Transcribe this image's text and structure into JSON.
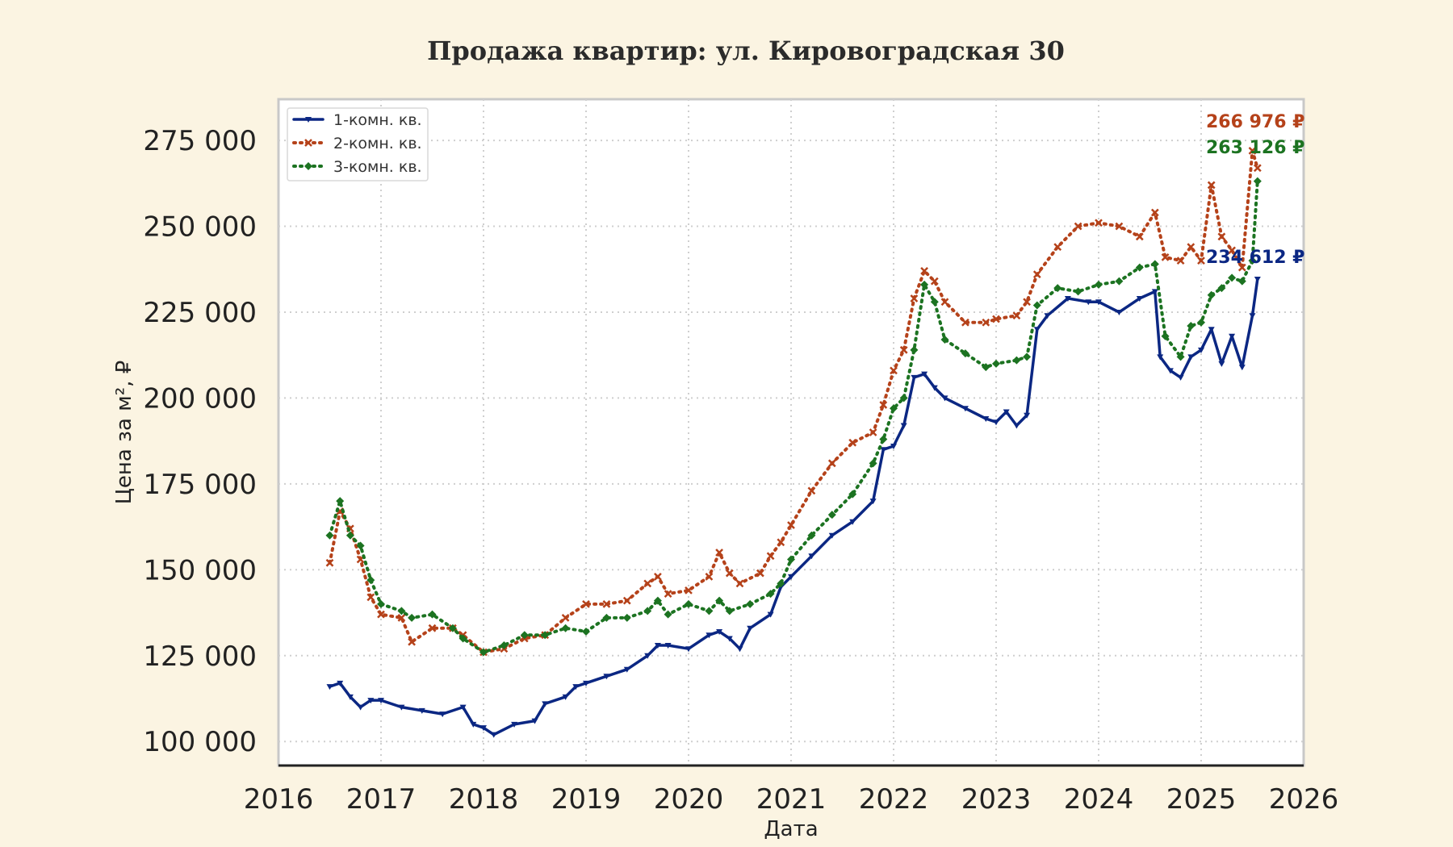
{
  "chart_data": {
    "type": "line",
    "title": "Продажа квартир: ул. Кировоградская 30",
    "xlabel": "Дата",
    "ylabel": "Цена за м², ₽",
    "xlim": [
      2016,
      2026
    ],
    "ylim": [
      93000,
      287000
    ],
    "x_ticks": [
      "2016",
      "2017",
      "2018",
      "2019",
      "2020",
      "2021",
      "2022",
      "2023",
      "2024",
      "2025",
      "2026"
    ],
    "y_ticks": [
      "100 000",
      "125 000",
      "150 000",
      "175 000",
      "200 000",
      "225 000",
      "250 000",
      "275 000"
    ],
    "grid": true,
    "legend_position": "top-left",
    "series": [
      {
        "name": "1-комн. кв.",
        "color": "#0b2783",
        "style": "solid",
        "marker": "triangle-down",
        "end_label": "234 612 ₽",
        "x": [
          2016.5,
          2016.6,
          2016.7,
          2016.8,
          2016.9,
          2017.0,
          2017.2,
          2017.4,
          2017.6,
          2017.8,
          2017.9,
          2018.0,
          2018.1,
          2018.3,
          2018.5,
          2018.6,
          2018.8,
          2018.9,
          2019.0,
          2019.2,
          2019.4,
          2019.6,
          2019.7,
          2019.8,
          2020.0,
          2020.2,
          2020.3,
          2020.4,
          2020.5,
          2020.6,
          2020.8,
          2020.9,
          2021.0,
          2021.2,
          2021.4,
          2021.6,
          2021.8,
          2021.9,
          2022.0,
          2022.1,
          2022.2,
          2022.3,
          2022.4,
          2022.5,
          2022.7,
          2022.9,
          2023.0,
          2023.1,
          2023.2,
          2023.3,
          2023.4,
          2023.5,
          2023.7,
          2023.9,
          2024.0,
          2024.2,
          2024.4,
          2024.55,
          2024.6,
          2024.7,
          2024.8,
          2024.9,
          2025.0,
          2025.1,
          2025.2,
          2025.3,
          2025.4,
          2025.5,
          2025.55
        ],
        "values": [
          116000,
          117000,
          113000,
          110000,
          112000,
          112000,
          110000,
          109000,
          108000,
          110000,
          105000,
          104000,
          102000,
          105000,
          106000,
          111000,
          113000,
          116000,
          117000,
          119000,
          121000,
          125000,
          128000,
          128000,
          127000,
          131000,
          132000,
          130000,
          127000,
          133000,
          137000,
          145000,
          148000,
          154000,
          160000,
          164000,
          170000,
          185000,
          186000,
          192000,
          206000,
          207000,
          203000,
          200000,
          197000,
          194000,
          193000,
          196000,
          192000,
          195000,
          220000,
          224000,
          229000,
          228000,
          228000,
          225000,
          229000,
          231000,
          212000,
          208000,
          206000,
          212000,
          214000,
          220000,
          210000,
          218000,
          209000,
          224000,
          234612
        ]
      },
      {
        "name": "2-комн. кв.",
        "color": "#b5421a",
        "style": "dotted",
        "marker": "x",
        "end_label": "266 976 ₽",
        "x": [
          2016.5,
          2016.6,
          2016.7,
          2016.8,
          2016.9,
          2017.0,
          2017.2,
          2017.3,
          2017.5,
          2017.7,
          2017.8,
          2018.0,
          2018.2,
          2018.4,
          2018.6,
          2018.8,
          2019.0,
          2019.2,
          2019.4,
          2019.6,
          2019.7,
          2019.8,
          2020.0,
          2020.2,
          2020.3,
          2020.4,
          2020.5,
          2020.7,
          2020.8,
          2020.9,
          2021.0,
          2021.2,
          2021.4,
          2021.6,
          2021.8,
          2021.9,
          2022.0,
          2022.1,
          2022.2,
          2022.3,
          2022.4,
          2022.5,
          2022.7,
          2022.9,
          2023.0,
          2023.2,
          2023.3,
          2023.4,
          2023.6,
          2023.8,
          2024.0,
          2024.2,
          2024.4,
          2024.55,
          2024.65,
          2024.8,
          2024.9,
          2025.0,
          2025.1,
          2025.2,
          2025.3,
          2025.4,
          2025.5,
          2025.55
        ],
        "values": [
          152000,
          167000,
          162000,
          153000,
          142000,
          137000,
          136000,
          129000,
          133000,
          133000,
          131000,
          126000,
          127000,
          130000,
          131000,
          136000,
          140000,
          140000,
          141000,
          146000,
          148000,
          143000,
          144000,
          148000,
          155000,
          149000,
          146000,
          149000,
          154000,
          158000,
          163000,
          173000,
          181000,
          187000,
          190000,
          198000,
          208000,
          214000,
          229000,
          237000,
          234000,
          228000,
          222000,
          222000,
          223000,
          224000,
          228000,
          236000,
          244000,
          250000,
          251000,
          250000,
          247000,
          254000,
          241000,
          240000,
          244000,
          240000,
          262000,
          247000,
          243000,
          238000,
          272000,
          266976
        ]
      },
      {
        "name": "3-комн. кв.",
        "color": "#1c7321",
        "style": "dotted",
        "marker": "diamond",
        "end_label": "263 126 ₽",
        "x": [
          2016.5,
          2016.6,
          2016.7,
          2016.8,
          2016.9,
          2017.0,
          2017.2,
          2017.3,
          2017.5,
          2017.7,
          2017.8,
          2018.0,
          2018.2,
          2018.4,
          2018.6,
          2018.8,
          2019.0,
          2019.2,
          2019.4,
          2019.6,
          2019.7,
          2019.8,
          2020.0,
          2020.2,
          2020.3,
          2020.4,
          2020.6,
          2020.8,
          2020.9,
          2021.0,
          2021.2,
          2021.4,
          2021.6,
          2021.8,
          2021.9,
          2022.0,
          2022.1,
          2022.2,
          2022.3,
          2022.4,
          2022.5,
          2022.7,
          2022.9,
          2023.0,
          2023.2,
          2023.3,
          2023.4,
          2023.6,
          2023.8,
          2024.0,
          2024.2,
          2024.4,
          2024.55,
          2024.65,
          2024.8,
          2024.9,
          2025.0,
          2025.1,
          2025.2,
          2025.3,
          2025.4,
          2025.5,
          2025.55
        ],
        "values": [
          160000,
          170000,
          160000,
          157000,
          147000,
          140000,
          138000,
          136000,
          137000,
          133000,
          130000,
          126000,
          128000,
          131000,
          131000,
          133000,
          132000,
          136000,
          136000,
          138000,
          141000,
          137000,
          140000,
          138000,
          141000,
          138000,
          140000,
          143000,
          146000,
          153000,
          160000,
          166000,
          172000,
          181000,
          188000,
          197000,
          200000,
          214000,
          233000,
          228000,
          217000,
          213000,
          209000,
          210000,
          211000,
          212000,
          227000,
          232000,
          231000,
          233000,
          234000,
          238000,
          239000,
          218000,
          212000,
          221000,
          222000,
          230000,
          232000,
          235000,
          234000,
          240000,
          263126
        ]
      }
    ]
  }
}
